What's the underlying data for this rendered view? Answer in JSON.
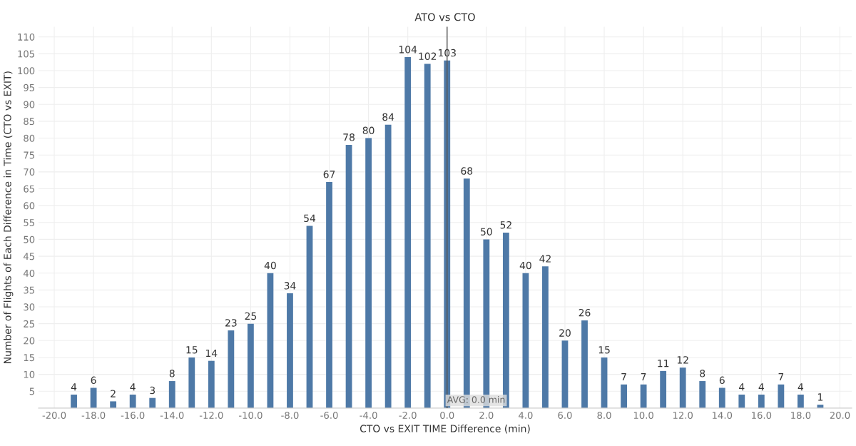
{
  "chart_data": {
    "type": "bar",
    "title": "ATO vs CTO",
    "xlabel": "CTO vs EXIT TIME Difference (min)",
    "ylabel": "Number of Flights of Each Difference in Time (CTO vs EXIT)",
    "x": [
      -19,
      -18,
      -17,
      -16,
      -15,
      -14,
      -13,
      -12,
      -11,
      -10,
      -9,
      -8,
      -7,
      -6,
      -5,
      -4,
      -3,
      -2,
      -1,
      0,
      1,
      2,
      3,
      4,
      5,
      6,
      7,
      8,
      9,
      10,
      11,
      12,
      13,
      14,
      15,
      16,
      17,
      18,
      19
    ],
    "values": [
      4,
      6,
      2,
      4,
      3,
      8,
      15,
      14,
      23,
      25,
      40,
      34,
      54,
      67,
      78,
      80,
      84,
      104,
      102,
      103,
      68,
      50,
      52,
      40,
      42,
      20,
      26,
      15,
      7,
      7,
      11,
      12,
      8,
      6,
      4,
      4,
      7,
      4,
      1
    ],
    "color": "#4e79a7",
    "data_labels": true,
    "xlim": [
      -20.8,
      20.6
    ],
    "ylim": [
      0,
      113
    ],
    "xticks": [
      {
        "value": -20,
        "label": "-20.0"
      },
      {
        "value": -18,
        "label": "-18.0"
      },
      {
        "value": -16,
        "label": "-16.0"
      },
      {
        "value": -14,
        "label": "-14.0"
      },
      {
        "value": -12,
        "label": "-12.0"
      },
      {
        "value": -10,
        "label": "-10.0"
      },
      {
        "value": -8,
        "label": "-8.0"
      },
      {
        "value": -6,
        "label": "-6.0"
      },
      {
        "value": -4,
        "label": "-4.0"
      },
      {
        "value": -2,
        "label": "-2.0"
      },
      {
        "value": 0,
        "label": "0.0"
      },
      {
        "value": 2,
        "label": "2.0"
      },
      {
        "value": 4,
        "label": "4.0"
      },
      {
        "value": 6,
        "label": "6.0"
      },
      {
        "value": 8,
        "label": "8.0"
      },
      {
        "value": 10,
        "label": "10.0"
      },
      {
        "value": 12,
        "label": "12.0"
      },
      {
        "value": 14,
        "label": "14.0"
      },
      {
        "value": 16,
        "label": "16.0"
      },
      {
        "value": 18,
        "label": "18.0"
      },
      {
        "value": 20,
        "label": "20.0"
      }
    ],
    "yticks": [
      5,
      10,
      15,
      20,
      25,
      30,
      35,
      40,
      45,
      50,
      55,
      60,
      65,
      70,
      75,
      80,
      85,
      90,
      95,
      100,
      105,
      110
    ],
    "grid": true,
    "ref_lines": [
      {
        "axis": "x",
        "value": 0,
        "label": "AVG: 0.0 min",
        "color": "#555555"
      }
    ]
  }
}
